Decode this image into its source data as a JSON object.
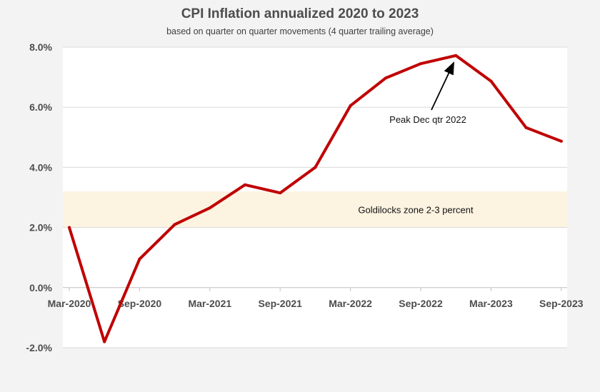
{
  "chart_data": {
    "type": "line",
    "title": "CPI Inflation annualized 2020 to 2023",
    "subtitle": "based on quarter on quarter movements (4 quarter trailing average)",
    "xlabel": "",
    "ylabel": "",
    "ylim": [
      -2,
      8
    ],
    "yticks": [
      "8.0%",
      "6.0%",
      "4.0%",
      "2.0%",
      "0.0%",
      "-2.0%"
    ],
    "ytick_values": [
      8,
      6,
      4,
      2,
      0,
      -2
    ],
    "x": [
      "Mar-2020",
      "Jun-2020",
      "Sep-2020",
      "Dec-2020",
      "Mar-2021",
      "Jun-2021",
      "Sep-2021",
      "Dec-2021",
      "Mar-2022",
      "Jun-2022",
      "Sep-2022",
      "Dec-2022",
      "Mar-2023",
      "Jun-2023",
      "Sep-2023"
    ],
    "xtick_labels": [
      "Mar-2020",
      "Sep-2020",
      "Mar-2021",
      "Sep-2021",
      "Mar-2022",
      "Sep-2022",
      "Mar-2023",
      "Sep-2023"
    ],
    "series": [
      {
        "values": [
          2.0,
          -1.8,
          0.95,
          2.1,
          2.65,
          3.42,
          3.15,
          4.0,
          6.05,
          6.97,
          7.45,
          7.72,
          6.87,
          5.32,
          4.87
        ],
        "color": "#c00000"
      }
    ],
    "band": {
      "from": 2.0,
      "to": 3.2,
      "label": "Goldilocks zone 2-3 percent",
      "color": "#fdf3e1"
    },
    "annotations": [
      {
        "text": "Peak Dec qtr 2022",
        "target_x": "Dec-2022",
        "target_y": 7.72
      }
    ],
    "grid": true
  }
}
